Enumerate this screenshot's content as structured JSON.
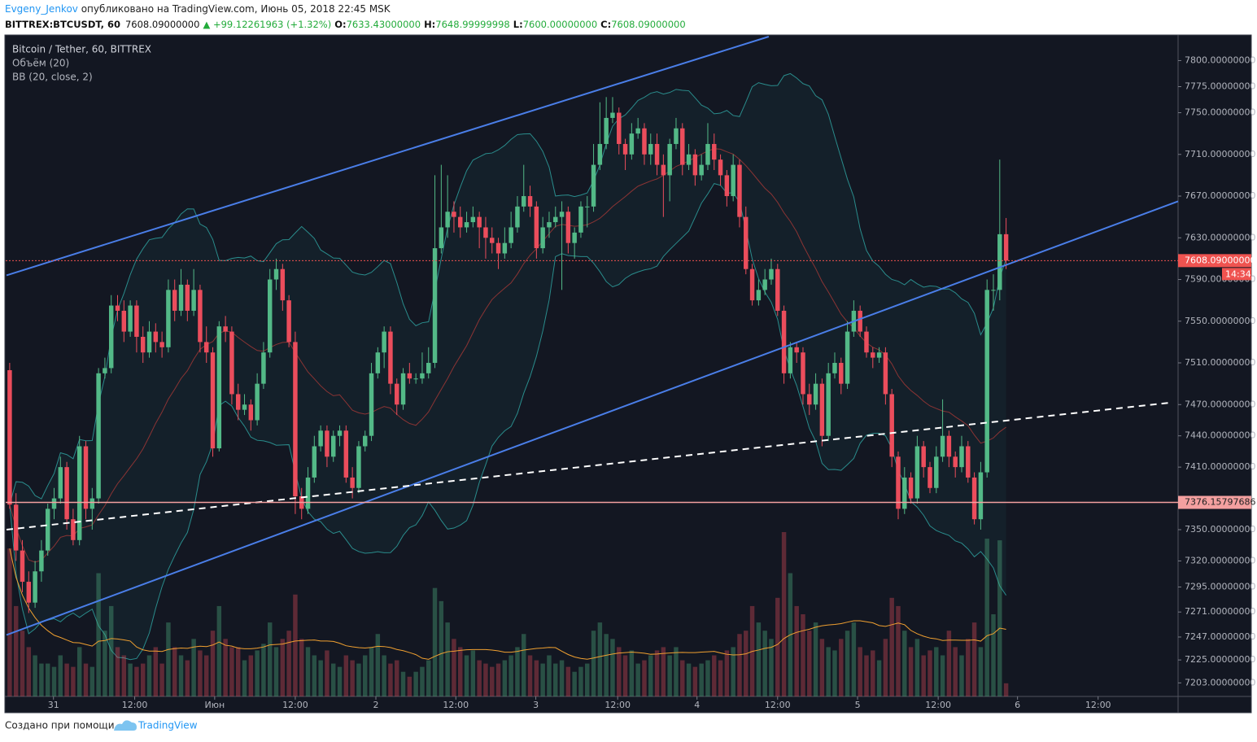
{
  "header": {
    "author": "Evgeny_Jenkov",
    "published": " опубликовано на TradingView.com, Июнь 05, 2018 22:45 MSK",
    "symbol": "BITTREX:BTCUSDT, 60",
    "last": "7608.09000000",
    "change": "▲ +99.12261963 (+1.32%)",
    "o_label": "O:",
    "o_value": "7633.43000000",
    "h_label": "H:",
    "h_value": "7648.99999998",
    "l_label": "L:",
    "l_value": "7600.00000000",
    "c_label": "C:",
    "c_value": "7608.09000000"
  },
  "legend": {
    "main": "Bitcoin / Tether, 60, BITTREX",
    "volume": "Объём (20)",
    "bb": "BB (20, close, 2)"
  },
  "footer": {
    "made_with": "Создано при помощи",
    "brand": "TradingView"
  },
  "chart_data": {
    "type": "candlestick",
    "up_color": "#53b987",
    "down_color": "#eb4d5c",
    "ylim": [
      7190,
      7823
    ],
    "yticks": [
      {
        "value": 7800,
        "label": "7800.00000000"
      },
      {
        "value": 7775,
        "label": "7775.00000000"
      },
      {
        "value": 7750,
        "label": "7750.00000000"
      },
      {
        "value": 7710,
        "label": "7710.00000000"
      },
      {
        "value": 7670,
        "label": "7670.00000000"
      },
      {
        "value": 7630,
        "label": "7630.00000000"
      },
      {
        "value": 7590,
        "label": "7590.00000000"
      },
      {
        "value": 7550,
        "label": "7550.00000000"
      },
      {
        "value": 7510,
        "label": "7510.00000000"
      },
      {
        "value": 7470,
        "label": "7470.00000000"
      },
      {
        "value": 7440,
        "label": "7440.00000000"
      },
      {
        "value": 7410,
        "label": "7410.00000000"
      },
      {
        "value": 7350,
        "label": "7350.00000000"
      },
      {
        "value": 7320,
        "label": "7320.00000000"
      },
      {
        "value": 7295,
        "label": "7295.00000000"
      },
      {
        "value": 7271,
        "label": "7271.00000000"
      },
      {
        "value": 7247,
        "label": "7247.00000000"
      },
      {
        "value": 7225,
        "label": "7225.00000000"
      },
      {
        "value": 7203,
        "label": "7203.00000000"
      }
    ],
    "xlim": [
      -0.5,
      184.1
    ],
    "xticks": [
      {
        "value": 6.9,
        "label": "31"
      },
      {
        "value": 19.7,
        "label": "12:00"
      },
      {
        "value": 32.3,
        "label": "Июн"
      },
      {
        "value": 45,
        "label": "12:00"
      },
      {
        "value": 57.7,
        "label": "2"
      },
      {
        "value": 70.3,
        "label": "12:00"
      },
      {
        "value": 82.9,
        "label": "3"
      },
      {
        "value": 95.8,
        "label": "12:00"
      },
      {
        "value": 108.3,
        "label": "4"
      },
      {
        "value": 121,
        "label": "12:00"
      },
      {
        "value": 133.6,
        "label": "5"
      },
      {
        "value": 146.3,
        "label": "12:00"
      },
      {
        "value": 158.8,
        "label": "6"
      },
      {
        "value": 171.5,
        "label": "12:00"
      }
    ],
    "bb_period": 20,
    "bb_mult": 2,
    "volume_ma_period": 20,
    "vlim": [
      0,
      100
    ],
    "candles": [
      [
        7503,
        7510,
        7370,
        7374
      ],
      [
        7374,
        7385,
        7320,
        7330
      ],
      [
        7330,
        7340,
        7290,
        7300
      ],
      [
        7300,
        7310,
        7270,
        7280
      ],
      [
        7280,
        7320,
        7275,
        7310
      ],
      [
        7310,
        7340,
        7300,
        7330
      ],
      [
        7330,
        7375,
        7325,
        7370
      ],
      [
        7370,
        7390,
        7360,
        7380
      ],
      [
        7380,
        7420,
        7375,
        7410
      ],
      [
        7410,
        7415,
        7350,
        7360
      ],
      [
        7360,
        7370,
        7335,
        7340
      ],
      [
        7340,
        7440,
        7335,
        7430
      ],
      [
        7430,
        7435,
        7360,
        7370
      ],
      [
        7370,
        7390,
        7350,
        7380
      ],
      [
        7380,
        7505,
        7375,
        7500
      ],
      [
        7500,
        7515,
        7495,
        7505
      ],
      [
        7505,
        7575,
        7500,
        7565
      ],
      [
        7565,
        7575,
        7550,
        7560
      ],
      [
        7560,
        7570,
        7530,
        7540
      ],
      [
        7540,
        7570,
        7535,
        7565
      ],
      [
        7565,
        7570,
        7520,
        7535
      ],
      [
        7535,
        7545,
        7510,
        7520
      ],
      [
        7520,
        7550,
        7515,
        7540
      ],
      [
        7540,
        7548,
        7520,
        7530
      ],
      [
        7530,
        7540,
        7515,
        7525
      ],
      [
        7525,
        7590,
        7520,
        7580
      ],
      [
        7580,
        7590,
        7550,
        7560
      ],
      [
        7560,
        7600,
        7555,
        7585
      ],
      [
        7585,
        7590,
        7550,
        7560
      ],
      [
        7560,
        7600,
        7555,
        7580
      ],
      [
        7580,
        7585,
        7520,
        7530
      ],
      [
        7530,
        7545,
        7510,
        7520
      ],
      [
        7520,
        7525,
        7420,
        7428
      ],
      [
        7428,
        7550,
        7425,
        7545
      ],
      [
        7545,
        7555,
        7530,
        7540
      ],
      [
        7540,
        7545,
        7470,
        7480
      ],
      [
        7480,
        7490,
        7455,
        7465
      ],
      [
        7465,
        7480,
        7460,
        7470
      ],
      [
        7470,
        7475,
        7445,
        7455
      ],
      [
        7455,
        7500,
        7450,
        7490
      ],
      [
        7490,
        7530,
        7485,
        7520
      ],
      [
        7520,
        7600,
        7515,
        7590
      ],
      [
        7590,
        7610,
        7580,
        7600
      ],
      [
        7600,
        7605,
        7560,
        7570
      ],
      [
        7570,
        7575,
        7525,
        7530
      ],
      [
        7530,
        7540,
        7365,
        7382
      ],
      [
        7382,
        7390,
        7360,
        7370
      ],
      [
        7370,
        7410,
        7365,
        7400
      ],
      [
        7400,
        7440,
        7395,
        7430
      ],
      [
        7430,
        7450,
        7425,
        7445
      ],
      [
        7445,
        7450,
        7410,
        7420
      ],
      [
        7420,
        7445,
        7415,
        7440
      ],
      [
        7440,
        7450,
        7430,
        7445
      ],
      [
        7445,
        7450,
        7395,
        7400
      ],
      [
        7400,
        7410,
        7380,
        7390
      ],
      [
        7390,
        7435,
        7385,
        7430
      ],
      [
        7430,
        7445,
        7425,
        7440
      ],
      [
        7440,
        7510,
        7435,
        7500
      ],
      [
        7500,
        7525,
        7495,
        7520
      ],
      [
        7520,
        7545,
        7505,
        7540
      ],
      [
        7540,
        7545,
        7480,
        7490
      ],
      [
        7490,
        7495,
        7460,
        7470
      ],
      [
        7470,
        7505,
        7465,
        7500
      ],
      [
        7500,
        7510,
        7490,
        7495
      ],
      [
        7495,
        7500,
        7490,
        7495
      ],
      [
        7495,
        7520,
        7490,
        7500
      ],
      [
        7500,
        7525,
        7495,
        7510
      ],
      [
        7510,
        7690,
        7505,
        7620
      ],
      [
        7620,
        7700,
        7615,
        7640
      ],
      [
        7640,
        7690,
        7630,
        7655
      ],
      [
        7655,
        7665,
        7635,
        7650
      ],
      [
        7650,
        7660,
        7630,
        7640
      ],
      [
        7640,
        7655,
        7635,
        7645
      ],
      [
        7645,
        7660,
        7640,
        7650
      ],
      [
        7650,
        7655,
        7620,
        7640
      ],
      [
        7640,
        7650,
        7610,
        7630
      ],
      [
        7630,
        7640,
        7615,
        7625
      ],
      [
        7625,
        7630,
        7600,
        7615
      ],
      [
        7615,
        7640,
        7610,
        7625
      ],
      [
        7625,
        7655,
        7620,
        7640
      ],
      [
        7640,
        7670,
        7635,
        7660
      ],
      [
        7660,
        7700,
        7655,
        7670
      ],
      [
        7670,
        7680,
        7650,
        7660
      ],
      [
        7660,
        7665,
        7610,
        7620
      ],
      [
        7620,
        7650,
        7615,
        7640
      ],
      [
        7640,
        7655,
        7630,
        7645
      ],
      [
        7645,
        7660,
        7640,
        7650
      ],
      [
        7650,
        7665,
        7580,
        7655
      ],
      [
        7655,
        7660,
        7615,
        7625
      ],
      [
        7625,
        7640,
        7610,
        7635
      ],
      [
        7635,
        7665,
        7630,
        7660
      ],
      [
        7660,
        7670,
        7640,
        7660
      ],
      [
        7660,
        7720,
        7655,
        7700
      ],
      [
        7700,
        7760,
        7695,
        7720
      ],
      [
        7720,
        7765,
        7715,
        7745
      ],
      [
        7745,
        7765,
        7740,
        7750
      ],
      [
        7750,
        7755,
        7710,
        7720
      ],
      [
        7720,
        7725,
        7695,
        7710
      ],
      [
        7710,
        7740,
        7705,
        7730
      ],
      [
        7730,
        7745,
        7725,
        7735
      ],
      [
        7735,
        7740,
        7700,
        7710
      ],
      [
        7710,
        7730,
        7700,
        7720
      ],
      [
        7720,
        7730,
        7690,
        7700
      ],
      [
        7700,
        7710,
        7650,
        7690
      ],
      [
        7690,
        7725,
        7665,
        7720
      ],
      [
        7720,
        7745,
        7715,
        7735
      ],
      [
        7735,
        7740,
        7690,
        7700
      ],
      [
        7700,
        7720,
        7695,
        7710
      ],
      [
        7710,
        7715,
        7680,
        7690
      ],
      [
        7690,
        7710,
        7685,
        7700
      ],
      [
        7700,
        7740,
        7695,
        7720
      ],
      [
        7720,
        7730,
        7695,
        7705
      ],
      [
        7705,
        7710,
        7680,
        7690
      ],
      [
        7690,
        7695,
        7660,
        7670
      ],
      [
        7670,
        7710,
        7665,
        7700
      ],
      [
        7700,
        7705,
        7640,
        7650
      ],
      [
        7650,
        7660,
        7595,
        7600
      ],
      [
        7600,
        7605,
        7565,
        7570
      ],
      [
        7570,
        7590,
        7565,
        7580
      ],
      [
        7580,
        7600,
        7575,
        7590
      ],
      [
        7590,
        7610,
        7585,
        7600
      ],
      [
        7600,
        7605,
        7555,
        7560
      ],
      [
        7560,
        7565,
        7490,
        7500
      ],
      [
        7500,
        7530,
        7495,
        7525
      ],
      [
        7525,
        7530,
        7510,
        7520
      ],
      [
        7520,
        7525,
        7470,
        7480
      ],
      [
        7480,
        7490,
        7460,
        7470
      ],
      [
        7470,
        7500,
        7465,
        7490
      ],
      [
        7490,
        7495,
        7430,
        7440
      ],
      [
        7440,
        7510,
        7435,
        7500
      ],
      [
        7500,
        7520,
        7495,
        7510
      ],
      [
        7510,
        7515,
        7480,
        7490
      ],
      [
        7490,
        7550,
        7485,
        7540
      ],
      [
        7540,
        7570,
        7535,
        7560
      ],
      [
        7560,
        7565,
        7535,
        7540
      ],
      [
        7540,
        7545,
        7515,
        7520
      ],
      [
        7520,
        7525,
        7505,
        7515
      ],
      [
        7515,
        7525,
        7510,
        7520
      ],
      [
        7520,
        7525,
        7470,
        7480
      ],
      [
        7480,
        7485,
        7410,
        7420
      ],
      [
        7420,
        7425,
        7360,
        7370
      ],
      [
        7370,
        7410,
        7365,
        7400
      ],
      [
        7400,
        7405,
        7375,
        7380
      ],
      [
        7380,
        7440,
        7375,
        7430
      ],
      [
        7430,
        7435,
        7400,
        7410
      ],
      [
        7410,
        7415,
        7385,
        7390
      ],
      [
        7390,
        7430,
        7385,
        7420
      ],
      [
        7420,
        7475,
        7415,
        7440
      ],
      [
        7440,
        7445,
        7410,
        7420
      ],
      [
        7420,
        7425,
        7400,
        7410
      ],
      [
        7410,
        7440,
        7405,
        7430
      ],
      [
        7430,
        7435,
        7395,
        7400
      ],
      [
        7400,
        7405,
        7355,
        7360
      ],
      [
        7360,
        7415,
        7350,
        7405
      ],
      [
        7405,
        7590,
        7400,
        7580
      ],
      [
        7580,
        7595,
        7560,
        7580
      ],
      [
        7580,
        7705,
        7570,
        7633.43
      ],
      [
        7633.43,
        7648.99999998,
        7600,
        7608.09
      ]
    ],
    "volume": [
      90,
      55,
      40,
      30,
      25,
      20,
      20,
      18,
      25,
      20,
      18,
      30,
      20,
      18,
      75,
      40,
      55,
      30,
      25,
      20,
      18,
      20,
      25,
      30,
      20,
      45,
      30,
      25,
      22,
      35,
      28,
      25,
      40,
      55,
      35,
      30,
      30,
      22,
      25,
      28,
      32,
      45,
      30,
      35,
      40,
      62,
      35,
      30,
      25,
      22,
      28,
      20,
      18,
      25,
      22,
      20,
      25,
      30,
      38,
      25,
      20,
      22,
      15,
      12,
      15,
      18,
      22,
      66,
      58,
      45,
      35,
      30,
      25,
      28,
      22,
      20,
      18,
      20,
      22,
      25,
      30,
      38,
      25,
      22,
      20,
      25,
      20,
      22,
      18,
      15,
      18,
      20,
      40,
      45,
      38,
      35,
      30,
      25,
      28,
      20,
      22,
      25,
      28,
      30,
      25,
      30,
      22,
      20,
      18,
      20,
      22,
      25,
      22,
      28,
      30,
      38,
      40,
      55,
      45,
      40,
      35,
      60,
      100,
      75,
      55,
      50,
      40,
      45,
      35,
      30,
      28,
      35,
      40,
      45,
      30,
      25,
      28,
      22,
      35,
      60,
      55,
      40,
      30,
      35,
      25,
      28,
      30,
      25,
      40,
      30,
      25,
      35,
      45,
      30,
      96,
      50,
      95,
      8
    ],
    "trendlines": [
      {
        "color": "#4a7ee8",
        "dashed": false,
        "points": [
          [
            -0.5,
            7594
          ],
          [
            119.6,
            7823
          ]
        ]
      },
      {
        "color": "#4a7ee8",
        "dashed": false,
        "points": [
          [
            -0.5,
            7249
          ],
          [
            184.1,
            7665
          ]
        ]
      },
      {
        "color": "#ffffff",
        "dashed": true,
        "points": [
          [
            -0.5,
            7350
          ],
          [
            183.1,
            7472
          ]
        ]
      }
    ],
    "price_lines": [
      {
        "value": 7608.09,
        "label": "7608.09000000",
        "color": "#ef5350",
        "dashed": true,
        "countdown": "14:34"
      },
      {
        "value": 7376.15797686,
        "label": "7376.15797686",
        "color": "#f4a0a0",
        "dashed": false
      }
    ]
  }
}
